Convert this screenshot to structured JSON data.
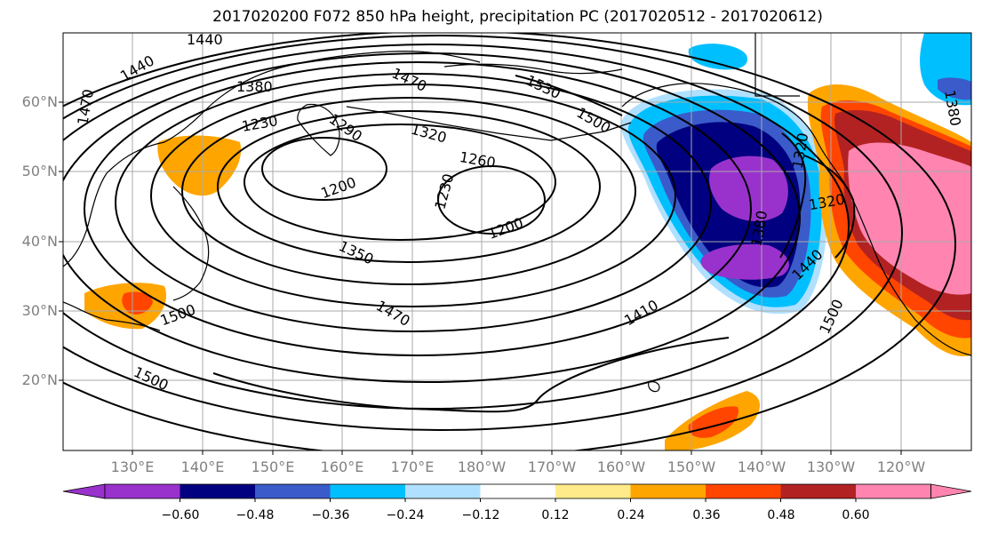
{
  "title": "2017020200 F072 850 hPa height, precipitation PC (2017020512 - 2017020612)",
  "lat_labels": [
    "60°N",
    "50°N",
    "40°N",
    "30°N",
    "20°N"
  ],
  "lon_labels": [
    "130°E",
    "140°E",
    "150°E",
    "160°E",
    "170°E",
    "180°W",
    "170°W",
    "160°W",
    "150°W",
    "140°W",
    "130°W",
    "120°W"
  ],
  "contour_labels": [
    "1440",
    "1440",
    "1470",
    "1380",
    "1230",
    "1290",
    "1470",
    "1530",
    "1500",
    "1320",
    "1260",
    "1200",
    "1200",
    "1230",
    "1200",
    "1350",
    "1410",
    "1470",
    "1500",
    "1500",
    "1380",
    "1320",
    "1440",
    "1500",
    "1380",
    "1320"
  ],
  "colorbar": {
    "colors": [
      "#9932cc",
      "#000080",
      "#3a5bc9",
      "#00bfff",
      "#b0e0ff",
      "#ffffff",
      "#ffeb8a",
      "#ffa500",
      "#ff4500",
      "#b22222",
      "#ff85b0"
    ],
    "tick_labels": [
      "−0.60",
      "−0.48",
      "−0.36",
      "−0.24",
      "−0.12",
      "0.12",
      "0.24",
      "0.36",
      "0.48",
      "0.60"
    ]
  }
}
